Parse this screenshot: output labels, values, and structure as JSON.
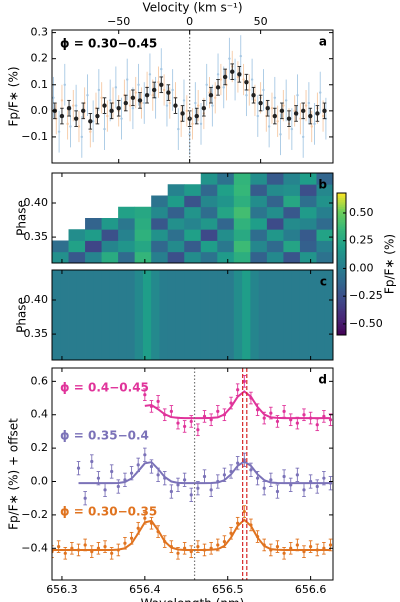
{
  "chart_data": [
    {
      "type": "errorbar",
      "xlabel": "Velocity (km s⁻¹)",
      "xaxis": "top",
      "ylabel": "Fp/F∗ (%)",
      "annotation": "ϕ = 0.30−0.45",
      "panel_label": "a",
      "xlim": [
        -97,
        101
      ],
      "xticks": [
        {
          "value": -50,
          "label": "−50"
        },
        0,
        50
      ],
      "ylim": [
        -0.2,
        0.31
      ],
      "yticks": [
        {
          "value": -0.1,
          "label": "−0.1"
        },
        {
          "value": 0,
          "label": "0.0"
        },
        0.1,
        0.2,
        0.3
      ],
      "vlines": [
        {
          "value": 0,
          "style": "dotted",
          "color": "#777777"
        }
      ],
      "series": [
        {
          "color": "#a6c8e4",
          "error": 0.08,
          "caps": false,
          "marker": 1.2,
          "x": [
            -96,
            -92,
            -88,
            -84,
            -80,
            -76,
            -72,
            -68,
            -64,
            -60,
            -56,
            -52,
            -48,
            -44,
            -40,
            -36,
            -32,
            -28,
            -24,
            -20,
            -16,
            -12,
            -8,
            -4,
            0,
            4,
            8,
            12,
            16,
            20,
            24,
            28,
            32,
            36,
            40,
            44,
            48,
            52,
            56,
            60,
            64,
            68,
            72,
            76,
            80,
            84,
            88,
            92,
            96
          ],
          "values": [
            0.05,
            -0.08,
            0.1,
            -0.06,
            0.02,
            -0.1,
            0.06,
            -0.04,
            0.08,
            -0.07,
            0.04,
            0.09,
            -0.03,
            0.12,
            0.01,
            0.1,
            0.03,
            0.14,
            0.05,
            0.16,
            0.02,
            0.08,
            -0.07,
            0.04,
            -0.09,
            0.03,
            -0.05,
            0.1,
            0.02,
            0.14,
            0.09,
            0.2,
            0.12,
            0.21,
            0.06,
            0.12,
            -0.02,
            0.08,
            -0.06,
            0.05,
            -0.09,
            0.04,
            -0.07,
            0.06,
            -0.1,
            0.03,
            -0.05,
            0.07,
            -0.03
          ]
        },
        {
          "color": "#f6c9a4",
          "error": 0.06,
          "caps": false,
          "marker": 1.2,
          "x": [
            -94,
            -90,
            -86,
            -82,
            -78,
            -74,
            -70,
            -66,
            -62,
            -58,
            -54,
            -50,
            -46,
            -42,
            -38,
            -34,
            -30,
            -26,
            -22,
            -18,
            -14,
            -10,
            -6,
            -2,
            2,
            6,
            10,
            14,
            18,
            22,
            26,
            30,
            34,
            38,
            42,
            46,
            50,
            54,
            58,
            62,
            66,
            70,
            74,
            78,
            82,
            86,
            90,
            94
          ],
          "values": [
            -0.03,
            0.04,
            -0.05,
            0.02,
            -0.06,
            0.03,
            -0.08,
            0.01,
            0.05,
            -0.02,
            0.03,
            0.0,
            0.06,
            0.02,
            0.07,
            0.03,
            0.09,
            0.06,
            0.11,
            0.08,
            0.03,
            0.05,
            -0.04,
            0.0,
            -0.05,
            0.02,
            -0.01,
            0.07,
            0.05,
            0.12,
            0.1,
            0.17,
            0.13,
            0.12,
            0.08,
            0.04,
            0.05,
            -0.02,
            0.01,
            -0.04,
            0.02,
            -0.05,
            0.0,
            -0.03,
            0.02,
            -0.06,
            0.01,
            -0.02
          ]
        },
        {
          "color": "#222222",
          "error": 0.03,
          "caps": true,
          "marker": 2.2,
          "x": [
            -95,
            -90,
            -85,
            -80,
            -75,
            -70,
            -65,
            -60,
            -55,
            -50,
            -45,
            -40,
            -35,
            -30,
            -25,
            -20,
            -15,
            -10,
            -5,
            0,
            5,
            10,
            15,
            20,
            25,
            30,
            35,
            40,
            45,
            50,
            55,
            60,
            65,
            70,
            75,
            80,
            85,
            90,
            95
          ],
          "values": [
            0.0,
            -0.02,
            0.01,
            -0.03,
            0.0,
            -0.04,
            -0.02,
            0.02,
            0.0,
            0.01,
            0.03,
            0.05,
            0.04,
            0.06,
            0.08,
            0.1,
            0.07,
            0.02,
            -0.01,
            -0.03,
            -0.02,
            0.01,
            0.06,
            0.09,
            0.13,
            0.15,
            0.14,
            0.11,
            0.06,
            0.03,
            0.01,
            -0.02,
            0.0,
            -0.03,
            -0.01,
            0.0,
            -0.02,
            -0.01,
            0.0
          ]
        }
      ]
    },
    {
      "type": "heatmap",
      "ylabel": "Phase",
      "panel_label": "b",
      "xlim": [
        656.288,
        656.627
      ],
      "ylim": [
        0.312,
        0.444
      ],
      "yticks": [
        0.35,
        {
          "value": 0.4,
          "label": "0.40"
        }
      ],
      "clim": [
        -0.6,
        0.68
      ],
      "colormap": "viridis",
      "colorbar": {
        "label": "Fp/F∗ (%)",
        "ticks": [
          {
            "value": 0.5,
            "label": "0.50"
          },
          {
            "value": 0.25,
            "label": "0.25"
          },
          {
            "value": 0,
            "label": "0.00"
          },
          {
            "value": -0.25,
            "label": "−0.25"
          },
          {
            "value": -0.5,
            "label": "−0.50"
          }
        ]
      },
      "z": [
        [
          0.12,
          -0.2,
          0.05,
          0.28,
          -0.1,
          0.35,
          0.02,
          -0.25,
          0.1,
          -0.05,
          0.18,
          0.3,
          -0.15,
          0.08,
          -0.22,
          0.14,
          -0.06
        ],
        [
          -0.08,
          0.22,
          -0.3,
          0.06,
          0.15,
          0.25,
          -0.12,
          0.09,
          -0.18,
          0.2,
          -0.02,
          0.38,
          0.07,
          -0.11,
          0.24,
          -0.16,
          0.03
        ],
        [
          null,
          0.1,
          0.19,
          -0.24,
          0.04,
          0.32,
          0.13,
          -0.07,
          0.21,
          -0.28,
          0.11,
          0.27,
          -0.09,
          0.16,
          0.01,
          -0.19,
          0.23
        ],
        [
          null,
          null,
          -0.14,
          0.17,
          -0.03,
          0.29,
          -0.21,
          0.12,
          0.05,
          0.16,
          -0.13,
          0.33,
          0.2,
          -0.27,
          0.09,
          0.06,
          -0.1
        ],
        [
          null,
          null,
          null,
          null,
          0.22,
          0.26,
          0.08,
          -0.16,
          0.14,
          -0.09,
          0.24,
          0.4,
          -0.04,
          0.11,
          -0.2,
          0.18,
          0.02
        ],
        [
          null,
          null,
          null,
          null,
          null,
          null,
          -0.05,
          0.19,
          -0.23,
          0.07,
          0.15,
          0.31,
          0.1,
          -0.14,
          0.26,
          -0.08,
          0.13
        ],
        [
          null,
          null,
          null,
          null,
          null,
          null,
          null,
          0.04,
          0.17,
          -0.12,
          0.21,
          0.36,
          -0.18,
          0.09,
          0.12,
          -0.25,
          0.07
        ],
        [
          null,
          null,
          null,
          null,
          null,
          null,
          null,
          null,
          null,
          0.14,
          -0.06,
          0.34,
          0.11,
          -0.19,
          0.05,
          0.2,
          -0.13
        ]
      ]
    },
    {
      "type": "heatmap",
      "ylabel": "Phase",
      "panel_label": "c",
      "xlim": [
        656.288,
        656.627
      ],
      "ylim": [
        0.312,
        0.444
      ],
      "yticks": [
        0.35,
        {
          "value": 0.4,
          "label": "0.40"
        }
      ],
      "clim": [
        -0.6,
        0.68
      ],
      "colormap": "viridis",
      "z": [
        [
          0,
          0,
          0,
          0,
          0,
          0,
          0,
          0,
          0,
          0,
          0.08,
          0.2,
          0.08,
          0.01,
          0,
          0,
          0,
          0,
          0,
          0,
          0,
          0,
          0.1,
          0.2,
          0.06,
          0,
          0,
          0,
          0,
          0,
          0,
          0,
          0,
          0
        ]
      ]
    },
    {
      "type": "errorbar",
      "xlabel": "Wavelength (nm)",
      "xaxis": "bottom",
      "ylabel": "Fp/F∗ (%) + offset",
      "panel_label": "d",
      "xlim": [
        656.288,
        656.627
      ],
      "xticks": [
        656.3,
        656.4,
        656.5,
        656.6
      ],
      "ylim": [
        -0.59,
        0.68
      ],
      "yticks": [
        {
          "value": -0.4,
          "label": "−0.4"
        },
        {
          "value": -0.2,
          "label": "−0.2"
        },
        {
          "value": 0,
          "label": "0.0"
        },
        0.2,
        0.4,
        0.6
      ],
      "vlines": [
        {
          "value": 656.46,
          "style": "dotted",
          "color": "#777777"
        },
        {
          "value": 656.518,
          "style": "dashed",
          "color": "#d62728"
        },
        {
          "value": 656.523,
          "style": "dashed",
          "color": "#d62728"
        }
      ],
      "series": [
        {
          "name": "ϕ = 0.4−0.45",
          "color": "#e0339a",
          "error": 0.035,
          "caps": true,
          "marker": 1.6,
          "x": [
            656.4,
            656.408,
            656.416,
            656.424,
            656.432,
            656.44,
            656.448,
            656.456,
            656.464,
            656.472,
            656.48,
            656.488,
            656.496,
            656.504,
            656.512,
            656.52,
            656.528,
            656.536,
            656.544,
            656.552,
            656.56,
            656.568,
            656.576,
            656.584,
            656.592,
            656.6,
            656.608,
            656.616,
            656.624
          ],
          "values": [
            0.52,
            0.45,
            0.48,
            0.4,
            0.42,
            0.35,
            0.33,
            0.36,
            0.31,
            0.39,
            0.37,
            0.42,
            0.4,
            0.47,
            0.55,
            0.6,
            0.5,
            0.43,
            0.38,
            0.41,
            0.36,
            0.42,
            0.37,
            0.35,
            0.4,
            0.38,
            0.34,
            0.39,
            0.37
          ],
          "model": [
            0.453,
            0.458,
            0.433,
            0.403,
            0.386,
            0.381,
            0.38,
            0.38,
            0.38,
            0.38,
            0.381,
            0.384,
            0.402,
            0.446,
            0.508,
            0.54,
            0.508,
            0.446,
            0.402,
            0.384,
            0.381,
            0.38,
            0.38,
            0.38,
            0.38,
            0.38,
            0.38,
            0.38,
            0.38
          ]
        },
        {
          "name": "ϕ = 0.35−0.4",
          "color": "#7b72b8",
          "error": 0.04,
          "caps": true,
          "marker": 1.6,
          "x": [
            656.32,
            656.328,
            656.336,
            656.344,
            656.352,
            656.36,
            656.368,
            656.376,
            656.384,
            656.392,
            656.4,
            656.408,
            656.416,
            656.424,
            656.432,
            656.44,
            656.448,
            656.456,
            656.464,
            656.472,
            656.48,
            656.488,
            656.496,
            656.504,
            656.512,
            656.52,
            656.528,
            656.536,
            656.544,
            656.552,
            656.56,
            656.568,
            656.576,
            656.584,
            656.592,
            656.6,
            656.608,
            656.616,
            656.624
          ],
          "values": [
            0.08,
            -0.1,
            0.12,
            0.02,
            -0.05,
            0.06,
            -0.03,
            0.01,
            0.05,
            0.1,
            0.16,
            0.09,
            0.04,
            0.02,
            -0.06,
            -0.02,
            0.01,
            -0.08,
            -0.04,
            0.03,
            -0.05,
            0.0,
            0.04,
            0.06,
            0.11,
            0.13,
            0.07,
            0.02,
            -0.04,
            0.01,
            -0.06,
            0.03,
            -0.02,
            0.04,
            -0.05,
            0.0,
            -0.03,
            0.02,
            -0.01
          ],
          "model": [
            -0.01,
            -0.01,
            -0.01,
            -0.01,
            -0.01,
            -0.01,
            -0.009,
            -0.003,
            0.018,
            0.062,
            0.109,
            0.116,
            0.075,
            0.027,
            0.0,
            -0.008,
            -0.01,
            -0.01,
            -0.01,
            -0.01,
            -0.009,
            -0.006,
            0.008,
            0.043,
            0.094,
            0.12,
            0.094,
            0.043,
            0.008,
            -0.006,
            -0.009,
            -0.01,
            -0.01,
            -0.01,
            -0.01,
            -0.01,
            -0.01,
            -0.01,
            -0.01
          ]
        },
        {
          "name": "ϕ = 0.30−0.35",
          "color": "#e0731f",
          "error": 0.035,
          "caps": true,
          "marker": 1.6,
          "x": [
            656.288,
            656.296,
            656.304,
            656.312,
            656.32,
            656.328,
            656.336,
            656.344,
            656.352,
            656.36,
            656.368,
            656.376,
            656.384,
            656.392,
            656.4,
            656.408,
            656.416,
            656.424,
            656.432,
            656.44,
            656.448,
            656.456,
            656.464,
            656.472,
            656.48,
            656.488,
            656.496,
            656.504,
            656.512,
            656.52,
            656.528,
            656.536,
            656.544,
            656.552,
            656.56,
            656.568,
            656.576,
            656.584,
            656.592,
            656.6,
            656.608,
            656.616,
            656.624
          ],
          "values": [
            -0.42,
            -0.39,
            -0.43,
            -0.4,
            -0.41,
            -0.38,
            -0.42,
            -0.4,
            -0.39,
            -0.43,
            -0.41,
            -0.37,
            -0.34,
            -0.28,
            -0.22,
            -0.25,
            -0.3,
            -0.36,
            -0.39,
            -0.43,
            -0.4,
            -0.42,
            -0.39,
            -0.41,
            -0.4,
            -0.38,
            -0.36,
            -0.31,
            -0.25,
            -0.18,
            -0.26,
            -0.33,
            -0.38,
            -0.41,
            -0.39,
            -0.43,
            -0.4,
            -0.38,
            -0.42,
            -0.39,
            -0.41,
            -0.4,
            -0.38
          ],
          "model": [
            -0.41,
            -0.41,
            -0.41,
            -0.41,
            -0.41,
            -0.41,
            -0.41,
            -0.41,
            -0.41,
            -0.41,
            -0.408,
            -0.4,
            -0.371,
            -0.31,
            -0.245,
            -0.236,
            -0.292,
            -0.359,
            -0.396,
            -0.407,
            -0.41,
            -0.41,
            -0.41,
            -0.41,
            -0.409,
            -0.405,
            -0.386,
            -0.336,
            -0.266,
            -0.23,
            -0.266,
            -0.336,
            -0.386,
            -0.405,
            -0.409,
            -0.41,
            -0.41,
            -0.41,
            -0.41,
            -0.41,
            -0.41,
            -0.41,
            -0.41
          ]
        }
      ]
    }
  ]
}
